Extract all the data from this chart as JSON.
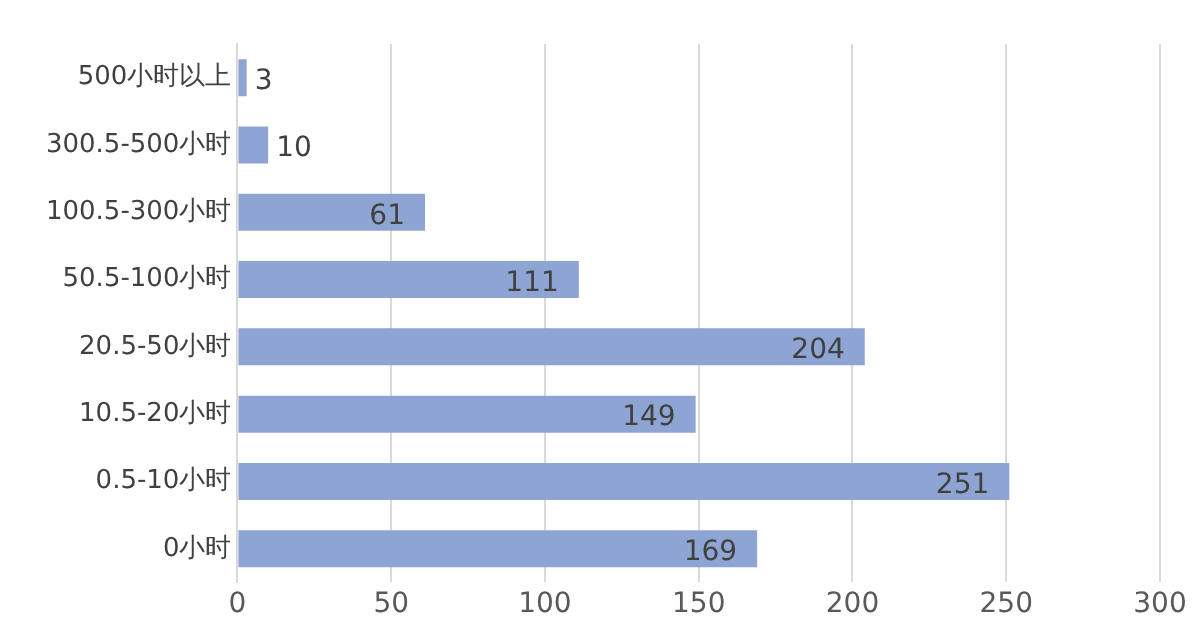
{
  "chart_data": {
    "type": "bar",
    "orientation": "horizontal",
    "categories": [
      "500小时以上",
      "300.5-500小时",
      "100.5-300小时",
      "50.5-100小时",
      "20.5-50小时",
      "10.5-20小时",
      "0.5-10小时",
      "0小时"
    ],
    "values": [
      3,
      10,
      61,
      111,
      204,
      149,
      251,
      169
    ],
    "color": "#8ea5d3",
    "xlim": [
      0,
      300
    ],
    "xticks": [
      0,
      50,
      100,
      150,
      200,
      250,
      300
    ],
    "grid": "x",
    "data_labels": true,
    "legend": false
  }
}
